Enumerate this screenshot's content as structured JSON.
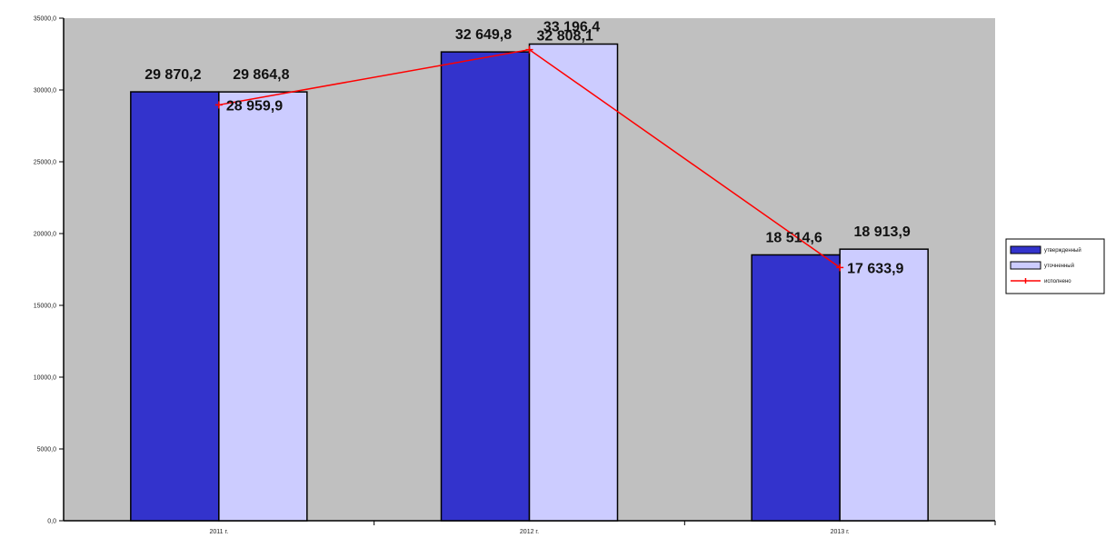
{
  "colors": {
    "plot_bg": "#c0c0c0",
    "series1": "#3333cc",
    "series2": "#ccccff",
    "line": "#ff0000",
    "outline": "#000000"
  },
  "chart_data": {
    "type": "bar",
    "categories": [
      "2011 г.",
      "2012 г.",
      "2013 г."
    ],
    "series": [
      {
        "name": "утвержденный",
        "values": [
          29870.2,
          32649.8,
          18514.6
        ],
        "labels": [
          "29 870,2",
          "32 649,8",
          "18 514,6"
        ]
      },
      {
        "name": "уточненный",
        "values": [
          29864.8,
          33196.4,
          18913.9
        ],
        "labels": [
          "29 864,8",
          "33 196,4",
          "18 913,9"
        ]
      },
      {
        "name": "исполнено",
        "type": "line",
        "values": [
          28959.9,
          32808.1,
          17633.9
        ],
        "labels": [
          "28 959,9",
          "32 808,1",
          "17 633,9"
        ]
      }
    ],
    "ylim": [
      0,
      35000
    ],
    "yticks": [
      "0,0",
      "5000,0",
      "10000,0",
      "15000,0",
      "20000,0",
      "25000,0",
      "30000,0",
      "35000,0"
    ],
    "grid": false,
    "legend": "right"
  }
}
